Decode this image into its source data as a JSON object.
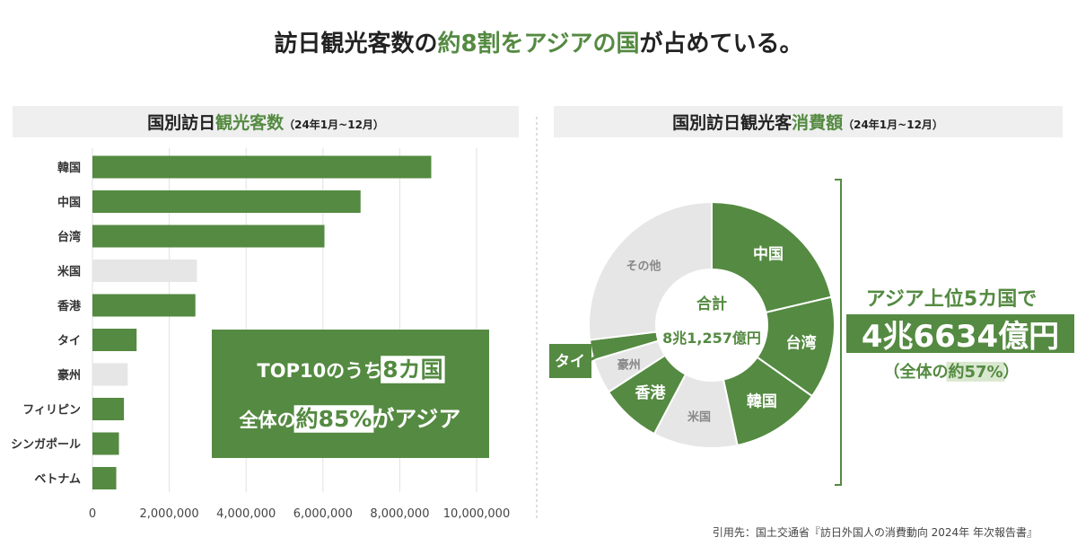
{
  "header": {
    "title": [
      "訪日観光客数の",
      "約8割をアジアの国",
      "が占めている。"
    ]
  },
  "chart_data": [
    {
      "type": "bar",
      "orientation": "horizontal",
      "title": [
        "国別訪日",
        "観光客数",
        "（24年1月~12月）"
      ],
      "categories": [
        "韓国",
        "中国",
        "台湾",
        "米国",
        "香港",
        "タイ",
        "豪州",
        "フィリピン",
        "シンガポール",
        "ベトナム"
      ],
      "values": [
        8820000,
        6980000,
        6040000,
        2720000,
        2680000,
        1150000,
        920000,
        820000,
        690000,
        620000
      ],
      "colors": [
        "#548a41",
        "#548a41",
        "#548a41",
        "#e6e6e6",
        "#548a41",
        "#548a41",
        "#e6e6e6",
        "#548a41",
        "#548a41",
        "#548a41"
      ],
      "xlim": [
        0,
        10000000
      ],
      "xticks": [
        0,
        {
          "value": 2000000,
          "label": "2,000,000"
        },
        {
          "value": 4000000,
          "label": "4,000,000"
        },
        {
          "value": 6000000,
          "label": "6,000,000"
        },
        {
          "value": 8000000,
          "label": "8,000,000"
        },
        {
          "value": 10000000,
          "label": "10,000,000"
        }
      ],
      "grid": true,
      "callout": [
        [
          "TOP10のうち",
          "8カ国"
        ],
        [
          "全体の",
          "約85%",
          "がアジア"
        ]
      ]
    },
    {
      "type": "donut",
      "title": [
        "国別訪日観光客",
        "消費額",
        "（24年1月~12月）"
      ],
      "categories": [
        "中国",
        "台湾",
        "韓国",
        "米国",
        "香港",
        "豪州",
        "タイ",
        "その他"
      ],
      "values": [
        17335,
        10936,
        9632,
        9021,
        6584,
        3721,
        2147,
        21881
      ],
      "colors": [
        "#548a41",
        "#548a41",
        "#548a41",
        "#e6e6e6",
        "#548a41",
        "#e6e6e6",
        "#548a41",
        "#e6e6e6"
      ],
      "center_label": [
        "合計",
        "8兆1,257億円"
      ],
      "callout": {
        "lead": "アジア上位5カ国で",
        "amount": "4兆6634億円",
        "share": [
          "（全体の",
          "約57%",
          "）"
        ]
      }
    }
  ],
  "source": "引用先：国土交通省『訪日外国人の消費動向 2024年 年次報告書』"
}
